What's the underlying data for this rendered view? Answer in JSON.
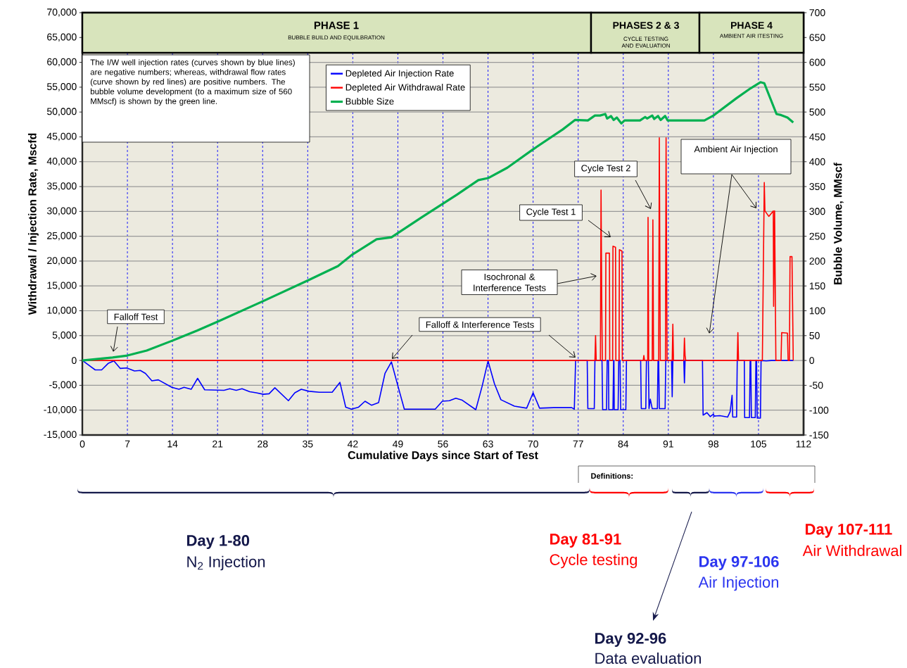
{
  "chart_data": {
    "type": "line",
    "xlabel": "Cumulative Days since Start of Test",
    "ylabel": "Withdrawal / Injection Rate, Mscfd",
    "y2label": "Bubble Volume, MMscf",
    "xlim": [
      0,
      112
    ],
    "xticks": [
      0,
      7,
      14,
      21,
      28,
      35,
      42,
      49,
      56,
      63,
      70,
      77,
      84,
      91,
      98,
      105,
      112
    ],
    "ylim": [
      -15000,
      70000
    ],
    "yticks": [
      {
        "value": -15000,
        "label": "-15,000"
      },
      {
        "value": -10000,
        "label": "-10,000"
      },
      {
        "value": -5000,
        "label": "-5,000"
      },
      {
        "value": 0,
        "label": "0"
      },
      {
        "value": 5000,
        "label": "5,000"
      },
      {
        "value": 10000,
        "label": "10,000"
      },
      {
        "value": 15000,
        "label": "15,000"
      },
      {
        "value": 20000,
        "label": "20,000"
      },
      {
        "value": 25000,
        "label": "25,000"
      },
      {
        "value": 30000,
        "label": "30,000"
      },
      {
        "value": 35000,
        "label": "35,000"
      },
      {
        "value": 40000,
        "label": "40,000"
      },
      {
        "value": 45000,
        "label": "45,000"
      },
      {
        "value": 50000,
        "label": "50,000"
      },
      {
        "value": 55000,
        "label": "55,000"
      },
      {
        "value": 60000,
        "label": "60,000"
      },
      {
        "value": 65000,
        "label": "65,000"
      },
      {
        "value": 70000,
        "label": "70,000"
      }
    ],
    "y2lim": [
      -150,
      700
    ],
    "y2ticks": [
      -150,
      -100,
      -50,
      0,
      50,
      100,
      150,
      200,
      250,
      300,
      350,
      400,
      450,
      500,
      550,
      600,
      650,
      700
    ],
    "grid": true,
    "legend": "top left",
    "series": [
      {
        "name": "Depleted Air Injection Rate",
        "color": "#0000ff",
        "x": [
          0,
          2,
          3,
          4,
          4.9,
          5.9,
          6.9,
          8.1,
          9,
          9.8,
          10.8,
          11.8,
          13.9,
          15,
          15.8,
          16.9,
          17.9,
          19,
          22,
          22.9,
          23.9,
          24.8,
          26,
          27,
          28.1,
          29,
          29.9,
          32,
          33,
          34,
          35.2,
          36.8,
          38.8,
          40,
          40.9,
          41.8,
          42.9,
          43.9,
          44.9,
          46,
          47,
          48,
          49,
          50,
          52.8,
          54.8,
          55.9,
          57,
          58,
          59,
          61.1,
          62.1,
          63,
          64,
          65,
          67.1,
          69,
          70,
          71,
          73.2,
          76,
          76.4,
          76.6,
          78.4,
          78.5,
          79.5,
          79.6,
          80.7,
          80.8,
          81.4,
          81.5,
          81.7,
          81.75,
          82.4,
          82.5,
          82.55,
          82.6,
          83.2,
          83.3,
          83.5,
          83.6,
          84.4,
          84.5,
          86.7,
          86.8,
          87.5,
          87.6,
          87.9,
          88,
          88.2,
          88.5,
          89.3,
          89.4,
          89.5,
          89.6,
          90.5,
          90.6,
          91.5,
          91.6,
          91.7,
          93.4,
          93.5,
          93.6,
          96.3,
          96.4,
          97,
          97.5,
          98,
          98.1,
          99,
          100.2,
          100.6,
          100.9,
          101,
          101.6,
          101.7,
          102.8,
          102.85,
          103.6,
          103.7,
          103.8,
          103.9,
          104.5,
          104.6,
          104.7,
          104.8,
          105.3,
          105.4,
          106.2,
          107,
          110.4
        ],
        "values": [
          0,
          -1900,
          -1900,
          -600,
          -100,
          -1600,
          -1500,
          -2100,
          -2000,
          -2600,
          -4100,
          -3900,
          -5400,
          -5800,
          -5400,
          -5800,
          -3600,
          -5900,
          -6000,
          -5700,
          -6000,
          -5700,
          -6300,
          -6500,
          -6800,
          -6700,
          -5500,
          -8100,
          -6500,
          -5800,
          -6200,
          -6400,
          -6400,
          -4400,
          -9400,
          -9800,
          -9400,
          -8200,
          -9000,
          -8500,
          -2600,
          -300,
          -5100,
          -9800,
          -9800,
          -9800,
          -8200,
          -8100,
          -7600,
          -8000,
          -9900,
          -5100,
          -100,
          -4700,
          -7900,
          -9200,
          -9600,
          -6500,
          -9600,
          -9500,
          -9500,
          -9800,
          0,
          0,
          -9700,
          -9700,
          0,
          0,
          -9900,
          -9900,
          0,
          0,
          -9900,
          -9900,
          0,
          0,
          -9900,
          -9900,
          0,
          0,
          -9900,
          -9900,
          0,
          0,
          -9700,
          -9700,
          0,
          0,
          -9700,
          -7800,
          -9700,
          -9700,
          0,
          0,
          -9700,
          -9700,
          0,
          0,
          -7300,
          0,
          0,
          -4500,
          0,
          0,
          -11000,
          -10500,
          -11300,
          -10800,
          -11200,
          -11100,
          -11400,
          -10300,
          -7000,
          -11400,
          -11400,
          0,
          0,
          -11500,
          -11500,
          0,
          0,
          -11500,
          -11500,
          0,
          0,
          -11600,
          -11600,
          0,
          -100,
          0,
          0
        ]
      },
      {
        "name": "Depleted Air Withdrawal Rate",
        "color": "#ff0000",
        "x": [
          0,
          79.6,
          79.7,
          79.8,
          80.45,
          80.55,
          80.65,
          80.75,
          81.25,
          81.3,
          81.85,
          81.9,
          82.35,
          82.4,
          82.8,
          82.85,
          83.35,
          83.4,
          83.8,
          83.85,
          87.1,
          87.2,
          87.3,
          87.8,
          87.85,
          87.95,
          88.5,
          88.6,
          88.7,
          89.5,
          89.6,
          89.75,
          90.55,
          90.65,
          90.8,
          91.6,
          91.7,
          91.8,
          93.4,
          93.5,
          93.6,
          93.7,
          101.7,
          101.8,
          101.9,
          105.6,
          105.9,
          106,
          106.6,
          107.3,
          107.35,
          107.5,
          107.7,
          108.5,
          108.6,
          109.5,
          109.6,
          109.8,
          109.9,
          110.2,
          110.4
        ],
        "values": [
          0,
          0,
          5000,
          0,
          0,
          34300,
          13300,
          0,
          0,
          21600,
          21600,
          0,
          0,
          23000,
          22800,
          0,
          0,
          22300,
          22000,
          0,
          0,
          1000,
          0,
          0,
          28800,
          0,
          0,
          28300,
          0,
          0,
          44800,
          0,
          0,
          44800,
          0,
          0,
          7300,
          0,
          0,
          4500,
          1000,
          0,
          0,
          5600,
          0,
          0,
          35800,
          30100,
          29000,
          30100,
          10900,
          30100,
          0,
          0,
          5600,
          5500,
          0,
          0,
          20900,
          20900,
          0
        ]
      },
      {
        "name": "Bubble Size",
        "color": "#00b050",
        "axis": "y2",
        "x": [
          0,
          4.7,
          7,
          10,
          14,
          17.8,
          21,
          28,
          35,
          39.7,
          41.8,
          45.7,
          48,
          52.8,
          58.2,
          61.5,
          63,
          66,
          70,
          74.6,
          76.5,
          78.5,
          79.6,
          80.4,
          81.2,
          81.5,
          82.1,
          82.5,
          83,
          83.7,
          84.2,
          86.6,
          87.4,
          87.7,
          88.5,
          88.8,
          89.4,
          89.8,
          90.5,
          90.9,
          96.6,
          98,
          101.6,
          103.8,
          105.3,
          105.9,
          107.8,
          108.5,
          109.5,
          110.4
        ],
        "values": [
          0,
          6,
          10,
          20,
          40,
          60,
          78,
          119,
          161,
          190,
          212,
          244,
          248,
          289,
          334,
          363,
          367,
          388,
          425,
          465,
          484,
          483,
          493,
          493,
          496,
          487,
          492,
          484,
          489,
          477,
          483,
          483,
          490,
          487,
          493,
          486,
          492,
          484,
          492,
          483,
          483,
          493,
          528,
          548,
          560,
          558,
          496,
          494,
          489,
          479
        ]
      }
    ],
    "annotations": [
      "The I/W well injection rates (curves shown by blue lines) are negative numbers; whereas, withdrawal flow rates (curve shown by red lines) are positive numbers. The bubble volume development (to a maximum size of 560 MMscf) is shown by the green line.",
      "Falloff Test",
      "Falloff & Interference Tests",
      "Isochronal & Interference Tests",
      "Cycle Test 1",
      "Cycle Test 2",
      "Ambient Air Injection",
      "PHASE 1",
      "BUBBLE BUILD AND EQUILBRATION",
      "PHASES 2 & 3",
      "CYCLE TESTING AND EVALUATION",
      "PHASE 4",
      "AMBIENT AIR ITESTING",
      "Definitions:",
      "Day 1-80",
      "N$_{2}$ Injection",
      "Day 81-91",
      "Cycle testing",
      "Day 92-96",
      "Data evaluation",
      "Day 97-106",
      "Air Injection",
      "Day 107-111",
      "Air Withdrawal"
    ]
  }
}
